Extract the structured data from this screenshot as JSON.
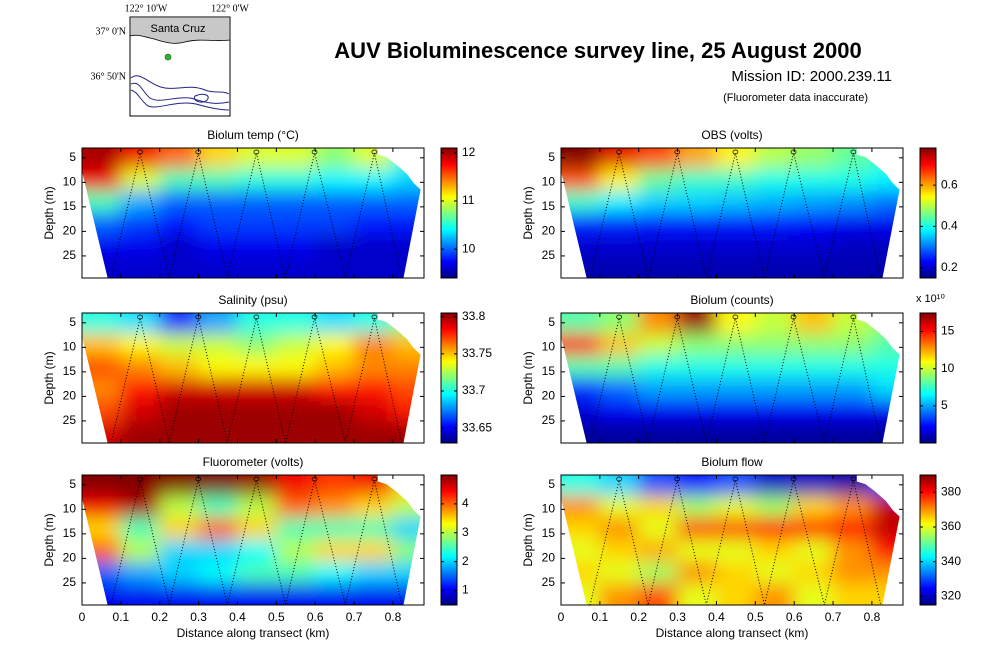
{
  "header": {
    "title": "AUV Bioluminescence survey line, 25 August 2000",
    "mission": "Mission ID: 2000.239.11",
    "note": "(Fluorometer data inaccurate)"
  },
  "inset_map": {
    "x_labels": [
      "122° 10'W",
      "122° 0'W"
    ],
    "y_labels": [
      "37° 0'N",
      "36° 50'N"
    ],
    "place": "Santa Cruz"
  },
  "chart_data": [
    {
      "type": "heatmap",
      "title": "Biolum temp (°C)",
      "ylabel": "Depth (m)",
      "colormap": "jet",
      "show_xticklabels": false,
      "x": [
        0.05,
        0.15,
        0.25,
        0.35,
        0.45,
        0.55,
        0.65,
        0.75,
        0.85
      ],
      "y": [
        5,
        9.5,
        14,
        18.5,
        23,
        27.5
      ],
      "values": [
        [
          12,
          11.8,
          11.5,
          11.2,
          11,
          11,
          10.8,
          11,
          10.5
        ],
        [
          11.8,
          11,
          10.6,
          10.6,
          10.5,
          10.5,
          10.4,
          10.4,
          10.3
        ],
        [
          10.6,
          10.2,
          10,
          10,
          10,
          10,
          10,
          10,
          10
        ],
        [
          10,
          9.9,
          9.8,
          9.9,
          9.9,
          9.9,
          9.9,
          9.8,
          9.8
        ],
        [
          9.7,
          9.7,
          9.6,
          9.7,
          9.7,
          9.7,
          9.6,
          9.6,
          9.6
        ],
        [
          9.6,
          9.6,
          9.6,
          9.6,
          9.6,
          9.6,
          9.6,
          9.6,
          9.6
        ]
      ],
      "xlim": [
        0,
        0.88
      ],
      "xticks": [
        0,
        0.1,
        0.2,
        0.3,
        0.4,
        0.5,
        0.6,
        0.7,
        0.8
      ],
      "ylim": [
        29.5,
        3
      ],
      "yticks": [
        5,
        10,
        15,
        20,
        25
      ],
      "zlim": [
        9.4,
        12.1
      ],
      "zticks": [
        10,
        11,
        12
      ]
    },
    {
      "type": "heatmap",
      "title": "OBS (volts)",
      "ylabel": "Depth (m)",
      "colormap": "jet",
      "show_xticklabels": false,
      "x": [
        0.05,
        0.15,
        0.25,
        0.35,
        0.45,
        0.55,
        0.65,
        0.75,
        0.85
      ],
      "y": [
        5,
        9.5,
        14,
        18.5,
        23,
        27.5
      ],
      "values": [
        [
          0.78,
          0.72,
          0.66,
          0.6,
          0.55,
          0.5,
          0.48,
          0.45,
          0.42
        ],
        [
          0.65,
          0.55,
          0.45,
          0.42,
          0.42,
          0.4,
          0.4,
          0.4,
          0.38
        ],
        [
          0.42,
          0.38,
          0.36,
          0.36,
          0.35,
          0.34,
          0.33,
          0.32,
          0.3
        ],
        [
          0.25,
          0.25,
          0.24,
          0.24,
          0.24,
          0.24,
          0.23,
          0.22,
          0.22
        ],
        [
          0.2,
          0.2,
          0.2,
          0.2,
          0.2,
          0.2,
          0.2,
          0.19,
          0.19
        ],
        [
          0.18,
          0.18,
          0.18,
          0.18,
          0.18,
          0.18,
          0.18,
          0.18,
          0.18
        ]
      ],
      "xlim": [
        0,
        0.88
      ],
      "xticks": [
        0,
        0.1,
        0.2,
        0.3,
        0.4,
        0.5,
        0.6,
        0.7,
        0.8
      ],
      "ylim": [
        29.5,
        3
      ],
      "yticks": [
        5,
        10,
        15,
        20,
        25
      ],
      "zlim": [
        0.15,
        0.78
      ],
      "zticks": [
        0.2,
        0.4,
        0.6
      ]
    },
    {
      "type": "heatmap",
      "title": "Salinity (psu)",
      "ylabel": "Depth (m)",
      "colormap": "jet",
      "show_xticklabels": false,
      "x": [
        0.05,
        0.15,
        0.25,
        0.35,
        0.45,
        0.55,
        0.65,
        0.75,
        0.85
      ],
      "y": [
        5,
        9.5,
        14,
        18.5,
        23,
        27.5
      ],
      "values": [
        [
          33.7,
          33.69,
          33.66,
          33.68,
          33.7,
          33.7,
          33.69,
          33.7,
          33.72
        ],
        [
          33.75,
          33.74,
          33.73,
          33.73,
          33.72,
          33.73,
          33.74,
          33.76,
          33.75
        ],
        [
          33.77,
          33.76,
          33.75,
          33.74,
          33.74,
          33.74,
          33.75,
          33.76,
          33.76
        ],
        [
          33.76,
          33.78,
          33.79,
          33.79,
          33.79,
          33.79,
          33.78,
          33.78,
          33.77
        ],
        [
          33.77,
          33.79,
          33.8,
          33.8,
          33.8,
          33.8,
          33.8,
          33.79,
          33.78
        ],
        [
          33.79,
          33.8,
          33.8,
          33.8,
          33.8,
          33.8,
          33.8,
          33.8,
          33.8
        ]
      ],
      "xlim": [
        0,
        0.88
      ],
      "xticks": [
        0,
        0.1,
        0.2,
        0.3,
        0.4,
        0.5,
        0.6,
        0.7,
        0.8
      ],
      "ylim": [
        29.5,
        3
      ],
      "yticks": [
        5,
        10,
        15,
        20,
        25
      ],
      "zlim": [
        33.63,
        33.805
      ],
      "zticks": [
        33.65,
        33.7,
        33.75,
        33.8
      ]
    },
    {
      "type": "heatmap",
      "title": "Biolum (counts)",
      "ylabel": "Depth (m)",
      "colormap": "jet",
      "show_xticklabels": false,
      "colorbar_scale": "x 10¹⁰",
      "x": [
        0.05,
        0.15,
        0.25,
        0.35,
        0.45,
        0.55,
        0.65,
        0.75,
        0.85
      ],
      "y": [
        5,
        9.5,
        14,
        18.5,
        23,
        27.5
      ],
      "values": [
        [
          8,
          9,
          13,
          17,
          11,
          10,
          12,
          10,
          9
        ],
        [
          15,
          12,
          10,
          9,
          9,
          9,
          9,
          9,
          8
        ],
        [
          8,
          8,
          7,
          7,
          7,
          7,
          7,
          7,
          7
        ],
        [
          3,
          4,
          5,
          5,
          5,
          5,
          5,
          5,
          6
        ],
        [
          1.5,
          2,
          2,
          2,
          2,
          2,
          2,
          2,
          2
        ],
        [
          0.5,
          0.5,
          0.5,
          0.5,
          0.5,
          0.5,
          0.5,
          0.5,
          0.5
        ]
      ],
      "xlim": [
        0,
        0.88
      ],
      "xticks": [
        0,
        0.1,
        0.2,
        0.3,
        0.4,
        0.5,
        0.6,
        0.7,
        0.8
      ],
      "ylim": [
        29.5,
        3
      ],
      "yticks": [
        5,
        10,
        15,
        20,
        25
      ],
      "zlim": [
        0,
        17.5
      ],
      "zticks": [
        5,
        10,
        15
      ]
    },
    {
      "type": "heatmap",
      "title": "Fluorometer (volts)",
      "xlabel": "Distance along transect (km)",
      "ylabel": "Depth (m)",
      "colormap": "jet",
      "show_xticklabels": true,
      "x": [
        0.05,
        0.15,
        0.25,
        0.35,
        0.45,
        0.55,
        0.65,
        0.75,
        0.85
      ],
      "y": [
        5,
        9.5,
        14,
        18.5,
        23,
        27.5
      ],
      "values": [
        [
          5,
          5,
          5,
          5,
          4.9,
          4.5,
          4.2,
          4.5,
          3.5
        ],
        [
          4.5,
          4.8,
          3,
          2.5,
          3,
          4,
          3.8,
          3.5,
          3
        ],
        [
          3.5,
          2.5,
          3.5,
          4,
          3.5,
          2.5,
          2.5,
          2.5,
          2
        ],
        [
          4,
          3,
          2,
          2,
          2.2,
          3,
          3.5,
          3.5,
          2.8
        ],
        [
          1.5,
          1.8,
          2,
          2.2,
          2.5,
          2.5,
          2.2,
          2,
          2
        ],
        [
          1,
          1,
          1,
          1,
          1,
          1,
          1,
          1,
          1
        ]
      ],
      "xlim": [
        0,
        0.88
      ],
      "xticks": [
        0,
        0.1,
        0.2,
        0.3,
        0.4,
        0.5,
        0.6,
        0.7,
        0.8
      ],
      "ylim": [
        29.5,
        3
      ],
      "yticks": [
        5,
        10,
        15,
        20,
        25
      ],
      "zlim": [
        0.5,
        5
      ],
      "zticks": [
        1,
        2,
        3,
        4
      ]
    },
    {
      "type": "heatmap",
      "title": "Biolum flow",
      "xlabel": "Distance along transect (km)",
      "ylabel": "Depth (m)",
      "colormap": "jet",
      "show_xticklabels": true,
      "x": [
        0.05,
        0.15,
        0.25,
        0.35,
        0.45,
        0.55,
        0.65,
        0.75,
        0.85
      ],
      "y": [
        5,
        9.5,
        14,
        18.5,
        23,
        27.5
      ],
      "values": [
        [
          345,
          340,
          330,
          325,
          330,
          320,
          320,
          318,
          330
        ],
        [
          370,
          360,
          365,
          355,
          360,
          355,
          365,
          370,
          385
        ],
        [
          365,
          370,
          360,
          375,
          375,
          380,
          378,
          380,
          385
        ],
        [
          360,
          365,
          368,
          360,
          360,
          365,
          360,
          370,
          380
        ],
        [
          365,
          360,
          355,
          370,
          365,
          360,
          365,
          370,
          370
        ],
        [
          360,
          370,
          375,
          360,
          365,
          370,
          360,
          365,
          365
        ]
      ],
      "xlim": [
        0,
        0.88
      ],
      "xticks": [
        0,
        0.1,
        0.2,
        0.3,
        0.4,
        0.5,
        0.6,
        0.7,
        0.8
      ],
      "ylim": [
        29.5,
        3
      ],
      "yticks": [
        5,
        10,
        15,
        20,
        25
      ],
      "zlim": [
        315,
        390
      ],
      "zticks": [
        320,
        340,
        360,
        380
      ]
    }
  ]
}
